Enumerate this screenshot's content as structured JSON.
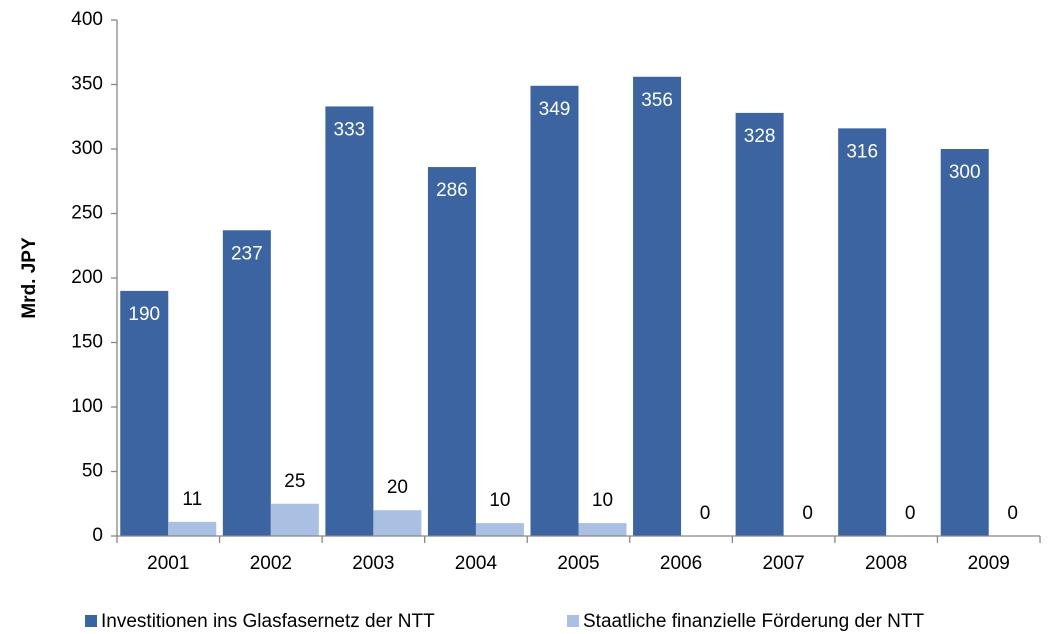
{
  "chart_data": {
    "type": "bar",
    "categories": [
      "2001",
      "2002",
      "2003",
      "2004",
      "2005",
      "2006",
      "2007",
      "2008",
      "2009"
    ],
    "series": [
      {
        "name": "Investitionen ins Glasfasernetz der NTT",
        "color": "#3b64a0",
        "values": [
          190,
          237,
          333,
          286,
          349,
          356,
          328,
          316,
          300
        ]
      },
      {
        "name": "Staatliche finanzielle Förderung der NTT",
        "color": "#a9c0e2",
        "values": [
          11,
          25,
          20,
          10,
          10,
          0,
          0,
          0,
          0
        ]
      }
    ],
    "y_label": "Mrd. JPY",
    "ylim": [
      0,
      400
    ],
    "yticks": [
      0,
      50,
      100,
      150,
      200,
      250,
      300,
      350,
      400
    ],
    "grid": false,
    "legend": "bottom"
  }
}
